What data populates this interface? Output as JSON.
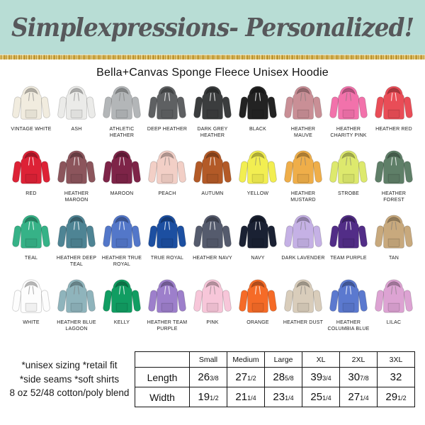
{
  "banner": {
    "text": "Simplexpressions- Personalized!",
    "bg_color": "#b8ddd5",
    "text_color": "#57585b",
    "glitter_color": "#d3b254"
  },
  "title": "Bella+Canvas Sponge Fleece Unisex Hoodie",
  "colors": [
    {
      "name": "VINTAGE WHITE",
      "hex": "#f1ecdf"
    },
    {
      "name": "ASH",
      "hex": "#ebebe9"
    },
    {
      "name": "ATHLETIC HEATHER",
      "hex": "#b3b6b8"
    },
    {
      "name": "DEEP HEATHER",
      "hex": "#5e6062"
    },
    {
      "name": "DARK GREY HEATHER",
      "hex": "#3b3d3e"
    },
    {
      "name": "BLACK",
      "hex": "#232323"
    },
    {
      "name": "HEATHER MAUVE",
      "hex": "#c98f96"
    },
    {
      "name": "HEATHER CHARITY PINK",
      "hex": "#f272ab"
    },
    {
      "name": "HEATHER RED",
      "hex": "#e94d57"
    },
    {
      "name": "RED",
      "hex": "#dd2236"
    },
    {
      "name": "HEATHER MAROON",
      "hex": "#8c555c"
    },
    {
      "name": "MAROON",
      "hex": "#7e2448"
    },
    {
      "name": "PEACH",
      "hex": "#f2cfc6"
    },
    {
      "name": "AUTUMN",
      "hex": "#b35a27"
    },
    {
      "name": "YELLOW",
      "hex": "#f2ee51"
    },
    {
      "name": "HEATHER MUSTARD",
      "hex": "#efae49"
    },
    {
      "name": "STROBE",
      "hex": "#dde96d"
    },
    {
      "name": "HEATHER FOREST",
      "hex": "#5f7f68"
    },
    {
      "name": "TEAL",
      "hex": "#36b287"
    },
    {
      "name": "HEATHER DEEP TEAL",
      "hex": "#4e8494"
    },
    {
      "name": "HEATHER TRUE ROYAL",
      "hex": "#5377c9"
    },
    {
      "name": "TRUE ROYAL",
      "hex": "#1c4fa1"
    },
    {
      "name": "HEATHER NAVY",
      "hex": "#555b6d"
    },
    {
      "name": "NAVY",
      "hex": "#1a2133"
    },
    {
      "name": "DARK LAVENDER",
      "hex": "#c5b1e5"
    },
    {
      "name": "TEAM PURPLE",
      "hex": "#522d87"
    },
    {
      "name": "TAN",
      "hex": "#c8a97d"
    },
    {
      "name": "WHITE",
      "hex": "#fdfdfd"
    },
    {
      "name": "HEATHER BLUE LAGOON",
      "hex": "#8fb4bc"
    },
    {
      "name": "KELLY",
      "hex": "#119d62"
    },
    {
      "name": "HEATHER TEAM PURPLE",
      "hex": "#9d7fcb"
    },
    {
      "name": "PINK",
      "hex": "#f7c6d9"
    },
    {
      "name": "ORANGE",
      "hex": "#f56b27"
    },
    {
      "name": "HEATHER DUST",
      "hex": "#d9cdbb"
    },
    {
      "name": "HEATHER COLUMBIA BLUE",
      "hex": "#5b79cf"
    },
    {
      "name": "LILAC",
      "hex": "#dda3d3"
    }
  ],
  "details": {
    "lines": [
      "*unisex sizing *retail fit",
      "*side seams  *soft shirts",
      "8 oz 52/48 cotton/poly blend"
    ]
  },
  "size_table": {
    "col_headers": [
      "",
      "Small",
      "Medium",
      "Large",
      "XL",
      "2XL",
      "3XL"
    ],
    "rows": [
      {
        "label": "Length",
        "values": [
          [
            "26",
            "3/8"
          ],
          [
            "27",
            "1/2"
          ],
          [
            "28",
            "5/8"
          ],
          [
            "39",
            "3/4"
          ],
          [
            "30",
            "7/8"
          ],
          [
            "32",
            ""
          ]
        ]
      },
      {
        "label": "Width",
        "values": [
          [
            "19",
            "1/2"
          ],
          [
            "21",
            "1/4"
          ],
          [
            "23",
            "1/4"
          ],
          [
            "25",
            "1/4"
          ],
          [
            "27",
            "1/4"
          ],
          [
            "29",
            "1/2"
          ]
        ]
      }
    ]
  }
}
